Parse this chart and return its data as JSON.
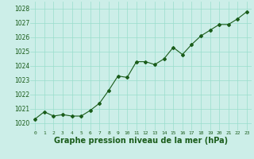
{
  "x": [
    0,
    1,
    2,
    3,
    4,
    5,
    6,
    7,
    8,
    9,
    10,
    11,
    12,
    13,
    14,
    15,
    16,
    17,
    18,
    19,
    20,
    21,
    22,
    23
  ],
  "y": [
    1020.3,
    1020.8,
    1020.5,
    1020.6,
    1020.5,
    1020.5,
    1020.9,
    1021.4,
    1022.3,
    1023.3,
    1023.2,
    1024.3,
    1024.3,
    1024.1,
    1024.5,
    1025.3,
    1024.8,
    1025.5,
    1026.1,
    1026.5,
    1026.9,
    1026.9,
    1027.3,
    1027.8
  ],
  "line_color": "#1a5c1a",
  "marker": "D",
  "marker_size": 2.0,
  "line_width": 0.8,
  "bg_color": "#cceee8",
  "grid_color": "#99ddcc",
  "xlabel": "Graphe pression niveau de la mer (hPa)",
  "xlabel_fontsize": 7,
  "xlabel_fontweight": "bold",
  "xlabel_color": "#1a5c1a",
  "tick_color": "#1a5c1a",
  "ytick_fontsize": 5.5,
  "xtick_fontsize": 4.5,
  "ylim": [
    1019.5,
    1028.5
  ],
  "yticks": [
    1020,
    1021,
    1022,
    1023,
    1024,
    1025,
    1026,
    1027,
    1028
  ],
  "xlim": [
    -0.5,
    23.5
  ]
}
